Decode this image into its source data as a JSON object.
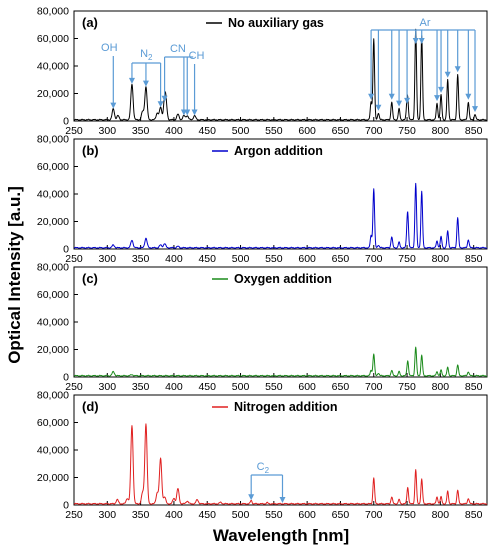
{
  "figure": {
    "ylabel": "Optical Intensity [a.u.]",
    "xlabel": "Wavelength [nm]"
  },
  "chart_data": [
    {
      "type": "line",
      "panel_label": "(a)",
      "legend": "No auxiliary gas",
      "color": "#000000",
      "xlim": [
        250,
        870
      ],
      "ylim": [
        0,
        80000
      ],
      "x_ticks": [
        250,
        300,
        350,
        400,
        450,
        500,
        550,
        600,
        650,
        700,
        750,
        800,
        850
      ],
      "y_ticks": [
        0,
        20000,
        40000,
        60000,
        80000
      ],
      "y_tick_labels": [
        "0",
        "20,000",
        "40,000",
        "60,000",
        "80,000"
      ],
      "peaks": [
        {
          "x": 309,
          "y": 8000
        },
        {
          "x": 316,
          "y": 3000
        },
        {
          "x": 337,
          "y": 26000
        },
        {
          "x": 353,
          "y": 6000
        },
        {
          "x": 358,
          "y": 24000
        },
        {
          "x": 375,
          "y": 5000
        },
        {
          "x": 380,
          "y": 9000
        },
        {
          "x": 386,
          "y": 13000
        },
        {
          "x": 388,
          "y": 11000
        },
        {
          "x": 406,
          "y": 4000
        },
        {
          "x": 415,
          "y": 3000
        },
        {
          "x": 420,
          "y": 3000
        },
        {
          "x": 431,
          "y": 3000
        },
        {
          "x": 696,
          "y": 13000
        },
        {
          "x": 700,
          "y": 59000
        },
        {
          "x": 707,
          "y": 5000
        },
        {
          "x": 727,
          "y": 13000
        },
        {
          "x": 738,
          "y": 8000
        },
        {
          "x": 750,
          "y": 10000
        },
        {
          "x": 751,
          "y": 10000
        },
        {
          "x": 763,
          "y": 66000
        },
        {
          "x": 772,
          "y": 61000
        },
        {
          "x": 795,
          "y": 12000
        },
        {
          "x": 801,
          "y": 18000
        },
        {
          "x": 811,
          "y": 29000
        },
        {
          "x": 826,
          "y": 33000
        },
        {
          "x": 842,
          "y": 13000
        },
        {
          "x": 852,
          "y": 4000
        }
      ],
      "annotations": [
        {
          "text": "OH",
          "targets": [
            309
          ]
        },
        {
          "text": "N",
          "subscript": "2",
          "targets": [
            337,
            358,
            380
          ]
        },
        {
          "text": "CN",
          "targets": [
            386,
            415,
            420
          ]
        },
        {
          "text": "CH",
          "targets": [
            431
          ]
        },
        {
          "text": "Ar",
          "targets": [
            696,
            707,
            727,
            738,
            750,
            763,
            772,
            795,
            801,
            811,
            826,
            842,
            852
          ]
        }
      ]
    },
    {
      "type": "line",
      "panel_label": "(b)",
      "legend": "Argon addition",
      "color": "#0000cc",
      "xlim": [
        250,
        870
      ],
      "ylim": [
        0,
        80000
      ],
      "x_ticks": [
        250,
        300,
        350,
        400,
        450,
        500,
        550,
        600,
        650,
        700,
        750,
        800,
        850
      ],
      "y_ticks": [
        0,
        20000,
        40000,
        60000,
        80000
      ],
      "y_tick_labels": [
        "0",
        "20,000",
        "40,000",
        "60,000",
        "80,000"
      ],
      "peaks": [
        {
          "x": 309,
          "y": 2000
        },
        {
          "x": 337,
          "y": 5500
        },
        {
          "x": 358,
          "y": 7000
        },
        {
          "x": 380,
          "y": 2000
        },
        {
          "x": 386,
          "y": 3000
        },
        {
          "x": 406,
          "y": 1000
        },
        {
          "x": 696,
          "y": 9000
        },
        {
          "x": 700,
          "y": 43000
        },
        {
          "x": 707,
          "y": 2000
        },
        {
          "x": 727,
          "y": 8000
        },
        {
          "x": 738,
          "y": 4000
        },
        {
          "x": 750,
          "y": 6000
        },
        {
          "x": 751,
          "y": 22000
        },
        {
          "x": 763,
          "y": 47000
        },
        {
          "x": 772,
          "y": 41000
        },
        {
          "x": 795,
          "y": 5000
        },
        {
          "x": 801,
          "y": 8000
        },
        {
          "x": 811,
          "y": 12000
        },
        {
          "x": 826,
          "y": 22000
        },
        {
          "x": 842,
          "y": 6000
        }
      ]
    },
    {
      "type": "line",
      "panel_label": "(c)",
      "legend": "Oxygen addition",
      "color": "#1a8a1a",
      "xlim": [
        250,
        870
      ],
      "ylim": [
        0,
        80000
      ],
      "x_ticks": [
        250,
        300,
        350,
        400,
        450,
        500,
        550,
        600,
        650,
        700,
        750,
        800,
        850
      ],
      "y_ticks": [
        0,
        20000,
        40000,
        60000,
        80000
      ],
      "y_tick_labels": [
        "0",
        "20,000",
        "40,000",
        "60,000",
        "80,000"
      ],
      "peaks": [
        {
          "x": 309,
          "y": 3000
        },
        {
          "x": 337,
          "y": 800
        },
        {
          "x": 696,
          "y": 4000
        },
        {
          "x": 700,
          "y": 16000
        },
        {
          "x": 707,
          "y": 2000
        },
        {
          "x": 727,
          "y": 4000
        },
        {
          "x": 738,
          "y": 3000
        },
        {
          "x": 751,
          "y": 11000
        },
        {
          "x": 763,
          "y": 21000
        },
        {
          "x": 772,
          "y": 15000
        },
        {
          "x": 795,
          "y": 3000
        },
        {
          "x": 801,
          "y": 4000
        },
        {
          "x": 811,
          "y": 6000
        },
        {
          "x": 826,
          "y": 8000
        },
        {
          "x": 842,
          "y": 3000
        }
      ]
    },
    {
      "type": "line",
      "panel_label": "(d)",
      "legend": "Nitrogen addition",
      "color": "#e02020",
      "xlim": [
        250,
        870
      ],
      "ylim": [
        0,
        80000
      ],
      "x_ticks": [
        250,
        300,
        350,
        400,
        450,
        500,
        550,
        600,
        650,
        700,
        750,
        800,
        850
      ],
      "x_tick_labels": [
        "250",
        "300",
        "350",
        "400",
        "450",
        "500",
        "550",
        "600",
        "650",
        "700",
        "750",
        "800",
        "850"
      ],
      "y_ticks": [
        0,
        20000,
        40000,
        60000,
        80000
      ],
      "y_tick_labels": [
        "0",
        "20,000",
        "40,000",
        "60,000",
        "80,000"
      ],
      "peaks": [
        {
          "x": 315,
          "y": 3000
        },
        {
          "x": 330,
          "y": 4000
        },
        {
          "x": 337,
          "y": 57000
        },
        {
          "x": 353,
          "y": 8000
        },
        {
          "x": 358,
          "y": 58000
        },
        {
          "x": 375,
          "y": 8000
        },
        {
          "x": 380,
          "y": 33000
        },
        {
          "x": 386,
          "y": 5000
        },
        {
          "x": 400,
          "y": 4000
        },
        {
          "x": 406,
          "y": 11000
        },
        {
          "x": 420,
          "y": 2000
        },
        {
          "x": 435,
          "y": 3000
        },
        {
          "x": 470,
          "y": 1000
        },
        {
          "x": 516,
          "y": 2500
        },
        {
          "x": 540,
          "y": 800
        },
        {
          "x": 700,
          "y": 19000
        },
        {
          "x": 727,
          "y": 5000
        },
        {
          "x": 738,
          "y": 3000
        },
        {
          "x": 751,
          "y": 12000
        },
        {
          "x": 763,
          "y": 25000
        },
        {
          "x": 772,
          "y": 18000
        },
        {
          "x": 795,
          "y": 5000
        },
        {
          "x": 801,
          "y": 5000
        },
        {
          "x": 811,
          "y": 9000
        },
        {
          "x": 826,
          "y": 10000
        },
        {
          "x": 842,
          "y": 4000
        }
      ],
      "annotations": [
        {
          "text": "C",
          "subscript": "2",
          "targets": [
            516,
            563
          ]
        }
      ]
    }
  ]
}
